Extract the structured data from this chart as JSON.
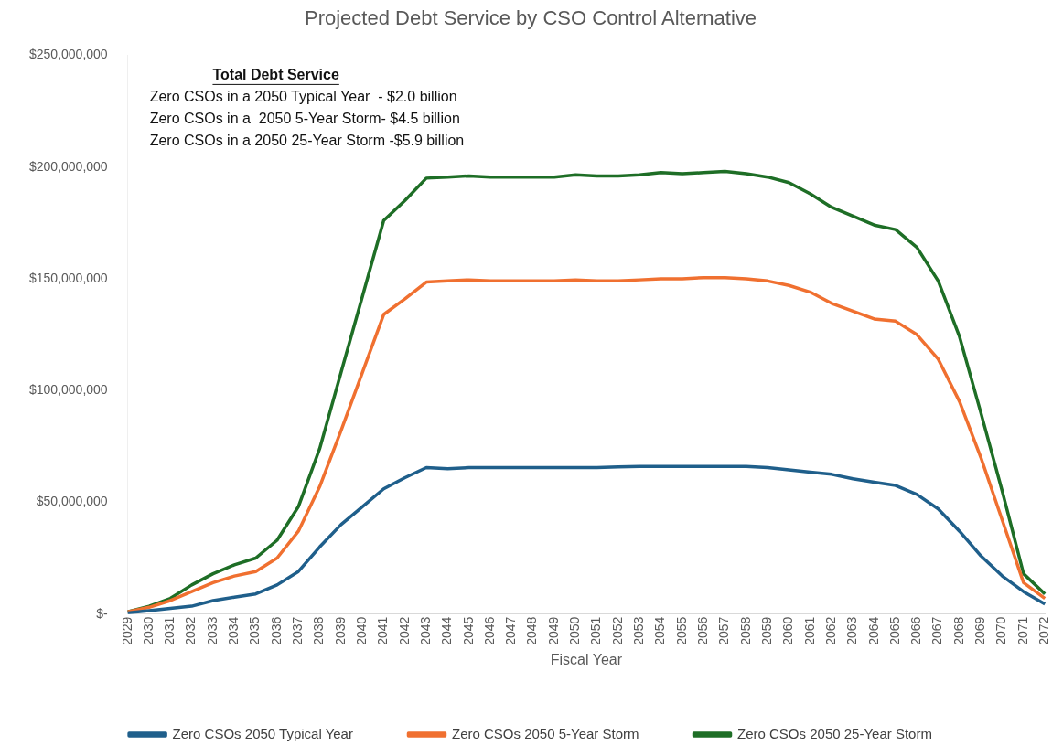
{
  "chart_data": {
    "type": "line",
    "title": "Projected Debt Service by CSO Control Alternative",
    "xlabel": "Fiscal Year",
    "annotations": [
      "Total Debt Service",
      "Zero CSOs in a 2050 Typical Year  - $2.0 billion",
      "Zero CSOs in a  2050 5-Year Storm- $4.5 billion",
      "Zero CSOs in a 2050 25-Year Storm -$5.9 billion"
    ],
    "categories": [
      "2029",
      "2030",
      "2031",
      "2032",
      "2033",
      "2034",
      "2035",
      "2036",
      "2037",
      "2038",
      "2039",
      "2040",
      "2041",
      "2042",
      "2043",
      "2044",
      "2045",
      "2046",
      "2047",
      "2048",
      "2049",
      "2050",
      "2051",
      "2052",
      "2053",
      "2054",
      "2055",
      "2056",
      "2057",
      "2058",
      "2059",
      "2060",
      "2061",
      "2062",
      "2063",
      "2064",
      "2065",
      "2066",
      "2067",
      "2068",
      "2069",
      "2070",
      "2071",
      "2072"
    ],
    "series": [
      {
        "name": "Zero CSOs 2050 Typical Year",
        "color": "#1f5f8b",
        "values": [
          500000,
          1500000,
          2500000,
          3500000,
          6000000,
          7500000,
          9000000,
          13000000,
          19000000,
          30000000,
          40000000,
          48000000,
          56000000,
          61000000,
          65500000,
          65000000,
          65500000,
          65500000,
          65500000,
          65500000,
          65500000,
          65500000,
          65500000,
          65800000,
          66000000,
          66000000,
          66000000,
          66000000,
          66000000,
          66000000,
          65500000,
          64500000,
          63500000,
          62500000,
          60500000,
          59000000,
          57500000,
          53500000,
          47000000,
          37000000,
          26000000,
          17000000,
          10000000,
          4500000
        ]
      },
      {
        "name": "Zero CSOs 2050 5-Year Storm",
        "color": "#f07030",
        "values": [
          1000000,
          3000000,
          6000000,
          10000000,
          14000000,
          17000000,
          19000000,
          25000000,
          37000000,
          57000000,
          82000000,
          108000000,
          134000000,
          141000000,
          148500000,
          149000000,
          149500000,
          149000000,
          149000000,
          149000000,
          149000000,
          149500000,
          149000000,
          149000000,
          149500000,
          150000000,
          150000000,
          150500000,
          150500000,
          150000000,
          149000000,
          147000000,
          144000000,
          139000000,
          135500000,
          132000000,
          131000000,
          125000000,
          114000000,
          95000000,
          70000000,
          42000000,
          14000000,
          7000000
        ]
      },
      {
        "name": "Zero CSOs 2050 25-Year Storm",
        "color": "#1e6e26",
        "values": [
          1000000,
          3500000,
          7000000,
          13000000,
          18000000,
          22000000,
          25000000,
          33000000,
          48000000,
          74000000,
          108000000,
          142000000,
          176000000,
          185000000,
          195000000,
          195500000,
          196000000,
          195500000,
          195500000,
          195500000,
          195500000,
          196500000,
          196000000,
          196000000,
          196500000,
          197500000,
          197000000,
          197500000,
          198000000,
          197000000,
          195500000,
          193000000,
          188000000,
          182000000,
          178000000,
          174000000,
          172000000,
          164000000,
          149000000,
          124000000,
          90000000,
          55000000,
          18000000,
          9000000
        ]
      }
    ],
    "ylim": [
      0,
      250000000
    ],
    "yticks": [
      {
        "value": 0,
        "label": "$-"
      },
      {
        "value": 50000000,
        "label": "$50,000,000"
      },
      {
        "value": 100000000,
        "label": "$100,000,000"
      },
      {
        "value": 150000000,
        "label": "$150,000,000"
      },
      {
        "value": 200000000,
        "label": "$200,000,000"
      },
      {
        "value": 250000000,
        "label": "$250,000,000"
      }
    ],
    "grid": false,
    "legend": "bottom",
    "marker": "none",
    "line_style": "solid"
  }
}
